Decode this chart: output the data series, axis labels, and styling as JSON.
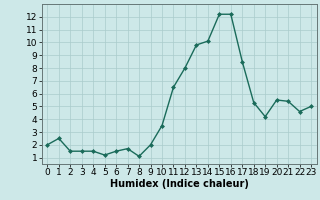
{
  "x": [
    0,
    1,
    2,
    3,
    4,
    5,
    6,
    7,
    8,
    9,
    10,
    11,
    12,
    13,
    14,
    15,
    16,
    17,
    18,
    19,
    20,
    21,
    22,
    23
  ],
  "y": [
    2.0,
    2.5,
    1.5,
    1.5,
    1.5,
    1.2,
    1.5,
    1.7,
    1.1,
    2.0,
    3.5,
    6.5,
    8.0,
    9.8,
    10.1,
    12.2,
    12.2,
    8.5,
    5.3,
    4.2,
    5.5,
    5.4,
    4.6,
    5.0
  ],
  "line_color": "#1a6b5a",
  "marker": "D",
  "markersize": 2.0,
  "linewidth": 1.0,
  "xlabel": "Humidex (Indice chaleur)",
  "xlabel_fontsize": 7,
  "xlim": [
    -0.5,
    23.5
  ],
  "ylim": [
    0.5,
    13.0
  ],
  "yticks": [
    1,
    2,
    3,
    4,
    5,
    6,
    7,
    8,
    9,
    10,
    11,
    12
  ],
  "xticks": [
    0,
    1,
    2,
    3,
    4,
    5,
    6,
    7,
    8,
    9,
    10,
    11,
    12,
    13,
    14,
    15,
    16,
    17,
    18,
    19,
    20,
    21,
    22,
    23
  ],
  "background_color": "#cde8e8",
  "grid_color": "#aacccc",
  "tick_fontsize": 6.5
}
